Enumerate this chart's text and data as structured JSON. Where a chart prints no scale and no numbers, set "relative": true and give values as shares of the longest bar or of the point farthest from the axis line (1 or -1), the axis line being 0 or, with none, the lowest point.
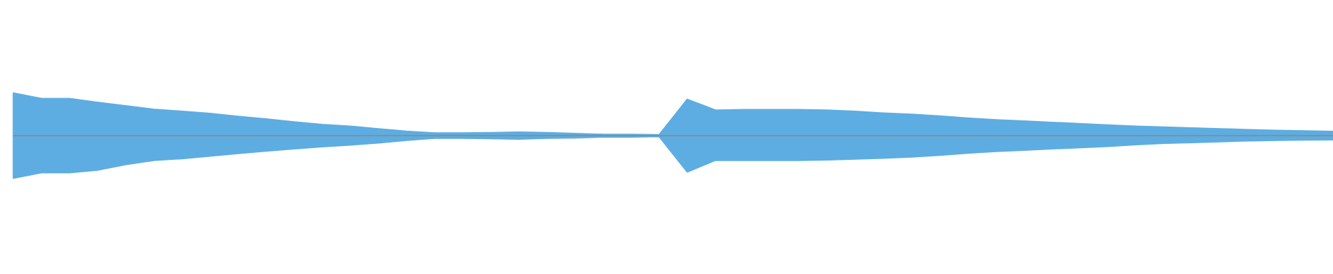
{
  "chart_data": {
    "type": "area",
    "relative": true,
    "categories": [
      null,
      null,
      null,
      null,
      null,
      null,
      null,
      null,
      null,
      null,
      null,
      null,
      null,
      null,
      null,
      null,
      null,
      null,
      null,
      null,
      null,
      null,
      null,
      null,
      null,
      null,
      null,
      null,
      null,
      null,
      null,
      null,
      null,
      null,
      null,
      null,
      null,
      null,
      null,
      null,
      null,
      null,
      null,
      null,
      null,
      null,
      null,
      null
    ],
    "series": [
      {
        "color": "#5dade2",
        "values": [
          1.0,
          0.87,
          0.87,
          0.78,
          0.7,
          0.62,
          0.57,
          0.52,
          0.45,
          0.39,
          0.32,
          0.26,
          0.22,
          0.16,
          0.1,
          0.06,
          0.06,
          0.07,
          0.08,
          0.07,
          0.05,
          0.03,
          0.03,
          0.02,
          0.854,
          0.6,
          0.612,
          0.612,
          0.612,
          0.6,
          0.57,
          0.53,
          0.5,
          0.46,
          0.41,
          0.37,
          0.34,
          0.31,
          0.28,
          0.25,
          0.22,
          0.2,
          0.18,
          0.16,
          0.14,
          0.12,
          0.11,
          0.096
        ]
      },
      {
        "color": "#5dade2",
        "values": [
          -1.0,
          -0.87,
          -0.87,
          -0.81,
          -0.68,
          -0.58,
          -0.54,
          -0.48,
          -0.42,
          -0.36,
          -0.31,
          -0.26,
          -0.22,
          -0.17,
          -0.11,
          -0.06,
          -0.06,
          -0.07,
          -0.08,
          -0.06,
          -0.05,
          -0.03,
          -0.03,
          -0.02,
          -0.854,
          -0.58,
          -0.58,
          -0.58,
          -0.58,
          -0.57,
          -0.55,
          -0.53,
          -0.5,
          -0.46,
          -0.41,
          -0.37,
          -0.34,
          -0.31,
          -0.28,
          -0.25,
          -0.21,
          -0.18,
          -0.16,
          -0.14,
          -0.12,
          -0.11,
          -0.1,
          -0.096
        ]
      }
    ]
  }
}
